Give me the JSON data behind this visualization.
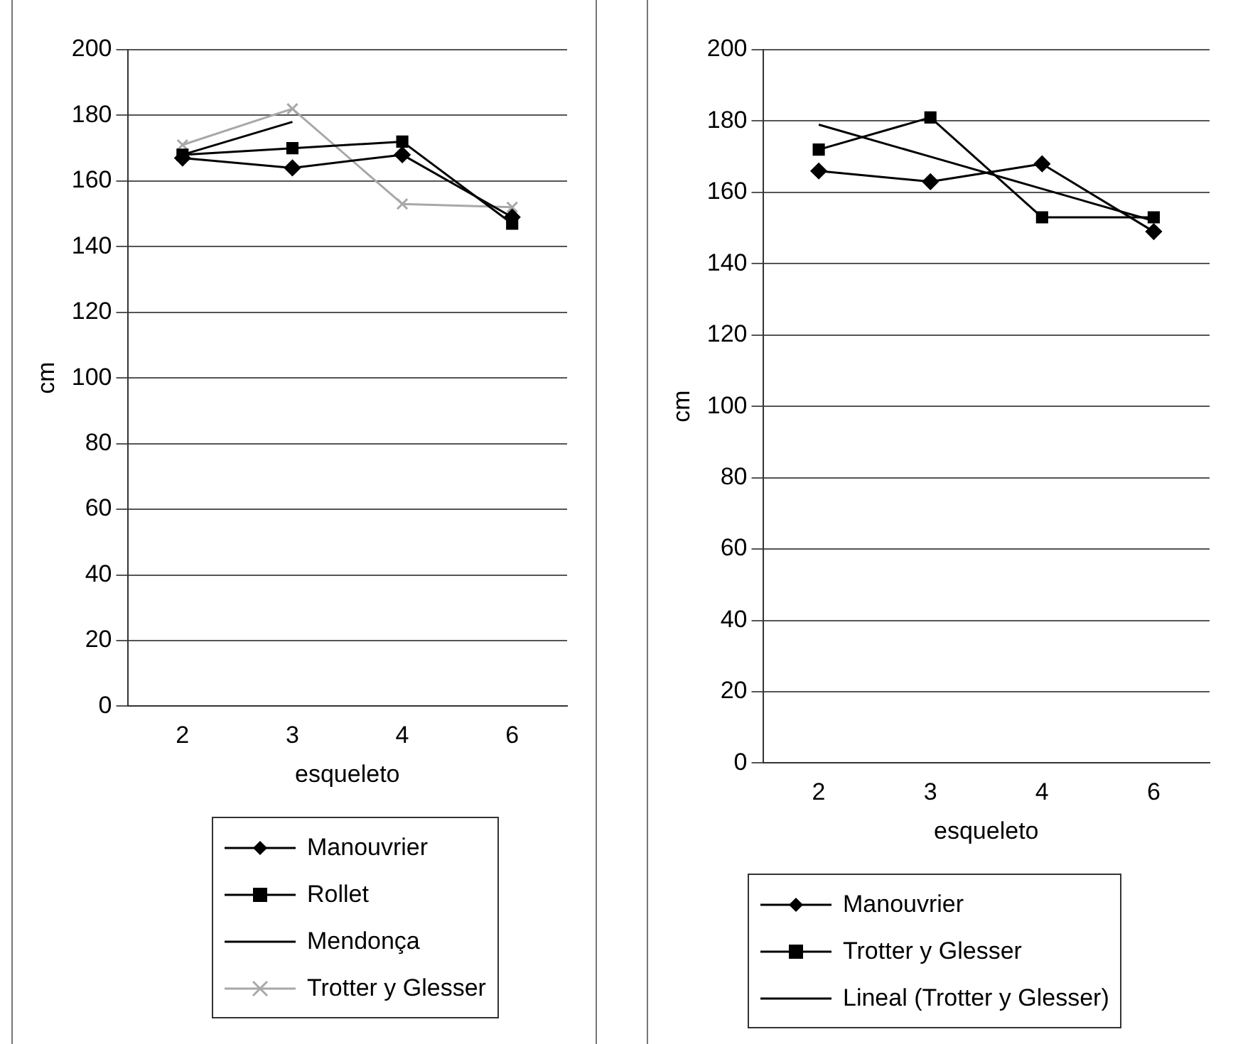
{
  "chart_data": [
    {
      "type": "line",
      "xlabel": "esqueleto",
      "ylabel": "cm",
      "categories": [
        "2",
        "3",
        "4",
        "6"
      ],
      "ylim": [
        0,
        200
      ],
      "yticks": [
        0,
        20,
        40,
        60,
        80,
        100,
        120,
        140,
        160,
        180,
        200
      ],
      "grid": "y",
      "legend": "bottom",
      "series": [
        {
          "name": "Manouvrier",
          "color": "#000000",
          "marker": "diamond",
          "values": [
            167,
            164,
            168,
            149
          ]
        },
        {
          "name": "Rollet",
          "color": "#000000",
          "marker": "square",
          "values": [
            168,
            170,
            172,
            147
          ]
        },
        {
          "name": "Mendonça",
          "color": "#000000",
          "marker": "none",
          "values": [
            168,
            178,
            null,
            null
          ]
        },
        {
          "name": "Trotter y Glesser",
          "color": "#a8a8a8",
          "marker": "cross",
          "values": [
            171,
            182,
            153,
            152
          ]
        }
      ]
    },
    {
      "type": "line",
      "xlabel": "esqueleto",
      "ylabel": "cm",
      "categories": [
        "2",
        "3",
        "4",
        "6"
      ],
      "ylim": [
        0,
        200
      ],
      "yticks": [
        0,
        20,
        40,
        60,
        80,
        100,
        120,
        140,
        160,
        180,
        200
      ],
      "grid": "y",
      "legend": "bottom",
      "series": [
        {
          "name": "Manouvrier",
          "color": "#000000",
          "marker": "diamond",
          "values": [
            166,
            163,
            168,
            149
          ]
        },
        {
          "name": "Trotter y Glesser",
          "color": "#000000",
          "marker": "square",
          "values": [
            172,
            181,
            153,
            153
          ]
        },
        {
          "name": "Lineal (Trotter y Glesser)",
          "color": "#000000",
          "marker": "none",
          "values": [
            179,
            170,
            161,
            152
          ]
        }
      ]
    }
  ]
}
